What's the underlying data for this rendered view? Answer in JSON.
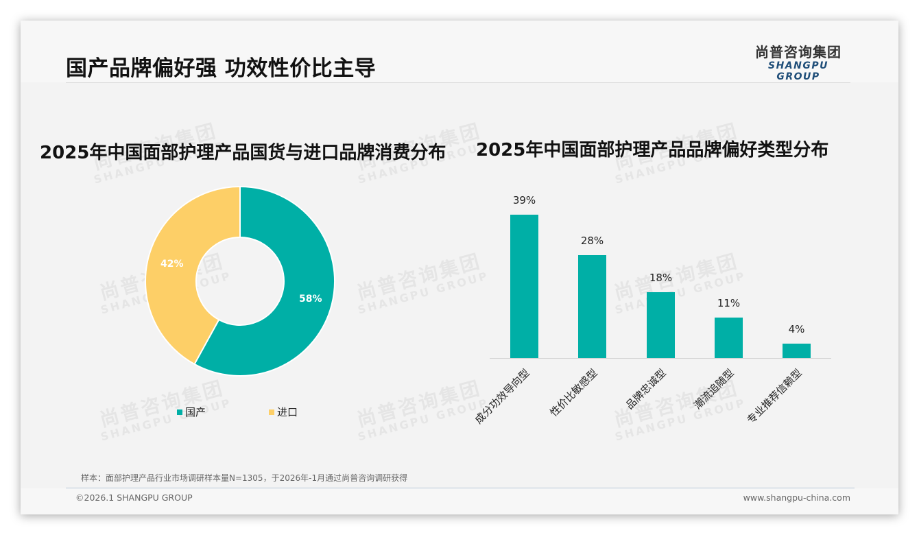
{
  "header": {
    "title": "国产品牌偏好强 功效性价比主导",
    "logo_cn": "尚普咨询集团",
    "logo_en": "SHANGPU GROUP"
  },
  "watermark": {
    "cn": "尚普咨询集团",
    "en": "SHANGPU GROUP"
  },
  "colors": {
    "teal": "#00afa6",
    "yellow": "#fdcf67",
    "background": "#f3f3f3"
  },
  "chart_data": [
    {
      "type": "pie",
      "title": "2025年中国面部护理产品国货与进口品牌消费分布",
      "categories": [
        "国产",
        "进口"
      ],
      "values": [
        58,
        42
      ],
      "labels": [
        "58%",
        "42%"
      ],
      "colors": [
        "#00afa6",
        "#fdcf67"
      ],
      "donut": true,
      "legend_position": "bottom"
    },
    {
      "type": "bar",
      "title": "2025年中国面部护理产品品牌偏好类型分布",
      "categories": [
        "成分功效导向型",
        "性价比敏感型",
        "品牌忠诚型",
        "潮流追随型",
        "专业推荐信赖型"
      ],
      "values": [
        39,
        28,
        18,
        11,
        4
      ],
      "labels": [
        "39%",
        "28%",
        "18%",
        "11%",
        "4%"
      ],
      "color": "#00afa6",
      "xlabel": "",
      "ylabel": "",
      "ylim": [
        0,
        40
      ],
      "grid": false
    }
  ],
  "legend": [
    {
      "label": "国产",
      "color": "#00afa6"
    },
    {
      "label": "进口",
      "color": "#fdcf67"
    }
  ],
  "footer": {
    "note": "样本：面部护理产品行业市场调研样本量N=1305，于2026年-1月通过尚普咨询调研获得",
    "copyright": "©2026.1 SHANGPU GROUP",
    "website": "www.shangpu-china.com"
  }
}
